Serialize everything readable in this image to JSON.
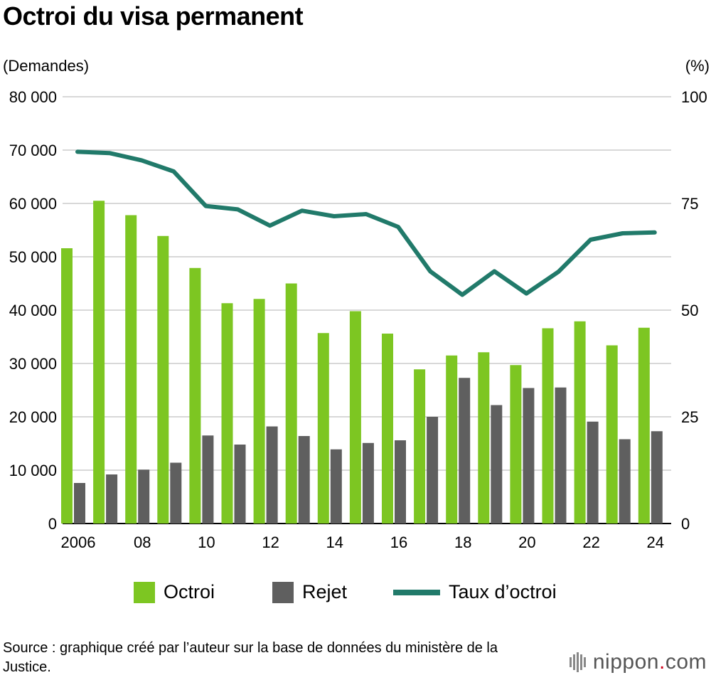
{
  "title": "Octroi du visa permanent",
  "units": {
    "left": "(Demandes)",
    "right": "(%)"
  },
  "colors": {
    "octroi": "#7dc622",
    "rejet": "#5f5f5f",
    "taux": "#217a6a",
    "grid": "#cccccc"
  },
  "chart_data": {
    "type": "bar",
    "categories": [
      "2006",
      "2007",
      "2008",
      "2009",
      "2010",
      "2011",
      "2012",
      "2013",
      "2014",
      "2015",
      "2016",
      "2017",
      "2018",
      "2019",
      "2020",
      "2021",
      "2022",
      "2023",
      "2024"
    ],
    "x_tick_labels": [
      "2006",
      "08",
      "10",
      "12",
      "14",
      "16",
      "18",
      "20",
      "22",
      "24"
    ],
    "series": [
      {
        "name": "Octroi",
        "type": "bar",
        "axis": "left",
        "values": [
          51600,
          60500,
          57800,
          53900,
          47900,
          41300,
          42100,
          45000,
          35700,
          39800,
          35600,
          28900,
          31500,
          32100,
          29700,
          36600,
          37900,
          33400,
          36700
        ]
      },
      {
        "name": "Rejet",
        "type": "bar",
        "axis": "left",
        "values": [
          7600,
          9200,
          10100,
          11400,
          16500,
          14800,
          18200,
          16400,
          13900,
          15100,
          15600,
          20000,
          27300,
          22200,
          25400,
          25500,
          19100,
          15800,
          17300
        ]
      },
      {
        "name": "Taux d’octroi",
        "type": "line",
        "axis": "right",
        "values": [
          87.1,
          86.8,
          85.1,
          82.5,
          74.4,
          73.6,
          69.8,
          73.3,
          72.0,
          72.5,
          69.5,
          59.1,
          53.6,
          59.1,
          53.9,
          59.0,
          66.5,
          68.0,
          68.2
        ]
      }
    ],
    "y_left": {
      "ticks": [
        "0",
        "10 000",
        "20 000",
        "30 000",
        "40 000",
        "50 000",
        "60 000",
        "70 000",
        "80 000"
      ],
      "lim": [
        0,
        80000
      ]
    },
    "y_right": {
      "ticks": [
        "0",
        "25",
        "50",
        "75",
        "100"
      ],
      "lim": [
        0,
        100
      ]
    },
    "grid": true,
    "legend_position": "bottom"
  },
  "legend": {
    "octroi": "Octroi",
    "rejet": "Rejet",
    "taux": "Taux d’octroi"
  },
  "source": "Source : graphique créé par l’auteur sur la base de données du ministère de la Justice.",
  "logo": {
    "text": "nippon",
    "dot": ".",
    "suffix": "com"
  }
}
